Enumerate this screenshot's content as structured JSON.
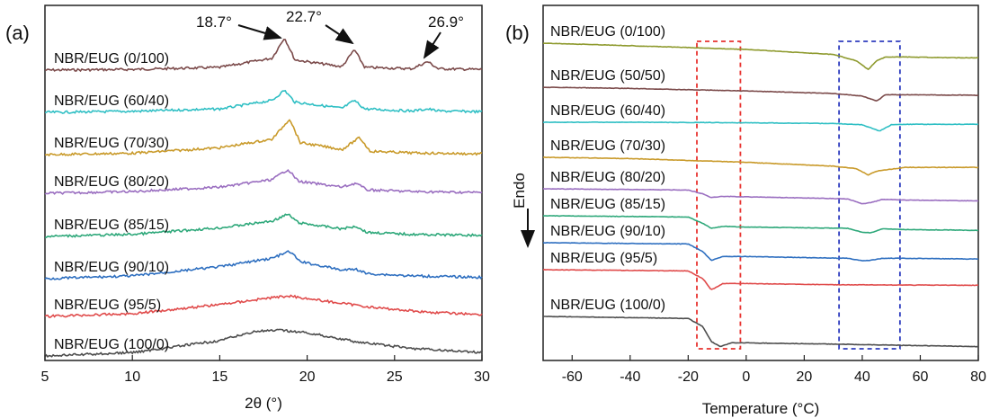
{
  "chart_data": [
    {
      "panel_label": "(a)",
      "type": "line",
      "xlabel": "2θ (°)",
      "ylabel": "",
      "xlim": [
        5,
        30
      ],
      "xticks": [
        "5",
        "10",
        "15",
        "20",
        "25",
        "30"
      ],
      "grid": false,
      "peak_annotations": [
        {
          "text": "18.7°",
          "x": 18.7
        },
        {
          "text": "22.7°",
          "x": 22.7
        },
        {
          "text": "26.9°",
          "x": 26.9
        }
      ],
      "series": [
        {
          "name": "NBR/EUG (0/100)",
          "color": "#7b4a4a",
          "x": [
            5,
            10,
            15,
            18,
            18.7,
            19.3,
            22,
            22.7,
            23.3,
            26,
            26.9,
            27.5,
            30
          ],
          "y": [
            0.0,
            0.02,
            0.08,
            0.35,
            0.95,
            0.3,
            0.1,
            0.6,
            0.08,
            0.04,
            0.25,
            0.04,
            0.02
          ]
        },
        {
          "name": "NBR/EUG (60/40)",
          "color": "#2fbfc4",
          "x": [
            5,
            10,
            15,
            18,
            18.7,
            19.3,
            22,
            22.7,
            23.3,
            26,
            26.9,
            27.5,
            30
          ],
          "y": [
            0.0,
            0.03,
            0.1,
            0.35,
            0.65,
            0.3,
            0.12,
            0.35,
            0.1,
            0.04,
            0.1,
            0.04,
            0.02
          ]
        },
        {
          "name": "NBR/EUG (70/30)",
          "color": "#c99a2a",
          "x": [
            5,
            10,
            15,
            18,
            19.0,
            19.6,
            22,
            23.0,
            23.6,
            26,
            30
          ],
          "y": [
            0.0,
            0.04,
            0.2,
            0.45,
            1.05,
            0.35,
            0.15,
            0.5,
            0.1,
            0.05,
            0.02
          ]
        },
        {
          "name": "NBR/EUG (80/20)",
          "color": "#9a6ec0",
          "x": [
            5,
            10,
            15,
            18,
            18.9,
            19.5,
            22,
            22.8,
            23.4,
            26,
            30
          ],
          "y": [
            0.0,
            0.05,
            0.18,
            0.4,
            0.7,
            0.35,
            0.18,
            0.3,
            0.1,
            0.05,
            0.02
          ]
        },
        {
          "name": "NBR/EUG (85/15)",
          "color": "#2ea87a",
          "x": [
            5,
            10,
            15,
            18,
            18.9,
            19.5,
            22,
            22.8,
            23.4,
            26,
            30
          ],
          "y": [
            0.0,
            0.06,
            0.25,
            0.45,
            0.65,
            0.4,
            0.22,
            0.3,
            0.12,
            0.06,
            0.03
          ]
        },
        {
          "name": "NBR/EUG (90/10)",
          "color": "#2e6fc0",
          "x": [
            5,
            10,
            15,
            18,
            19.0,
            19.6,
            22,
            22.8,
            23.4,
            26,
            30
          ],
          "y": [
            0.0,
            0.08,
            0.35,
            0.6,
            0.8,
            0.5,
            0.25,
            0.28,
            0.15,
            0.08,
            0.04
          ]
        },
        {
          "name": "NBR/EUG (95/5)",
          "color": "#e04b4b",
          "x": [
            5,
            10,
            15,
            18,
            19.0,
            21,
            24,
            27,
            30
          ],
          "y": [
            0.0,
            0.08,
            0.35,
            0.55,
            0.6,
            0.45,
            0.25,
            0.12,
            0.06
          ]
        },
        {
          "name": "NBR/EUG (100/0)",
          "color": "#4d4d4d",
          "x": [
            5,
            10,
            15,
            17,
            18.5,
            20,
            23,
            26,
            30
          ],
          "y": [
            0.0,
            0.1,
            0.45,
            0.72,
            0.75,
            0.68,
            0.4,
            0.22,
            0.1
          ]
        }
      ]
    },
    {
      "panel_label": "(b)",
      "type": "line",
      "xlabel": "Temperature (°C)",
      "ylabel": "Endo",
      "xlim": [
        -70,
        80
      ],
      "xticks": [
        "-60",
        "-40",
        "-20",
        "0",
        "20",
        "40",
        "60",
        "80"
      ],
      "grid": false,
      "highlight_regions": [
        {
          "color": "#e8322f",
          "x_range": [
            -17,
            -2
          ],
          "style": "dashed"
        },
        {
          "color": "#2f3dbf",
          "x_range": [
            32,
            53
          ],
          "style": "dashed"
        }
      ],
      "series": [
        {
          "name": "NBR/EUG (0/100)",
          "color": "#8e9a2e",
          "x": [
            -70,
            -40,
            0,
            30,
            38,
            42,
            45,
            48,
            55,
            70,
            80
          ],
          "y": [
            0.0,
            -0.1,
            -0.25,
            -0.45,
            -0.7,
            -1.05,
            -0.7,
            -0.55,
            -0.55,
            -0.58,
            -0.58
          ]
        },
        {
          "name": "NBR/EUG (50/50)",
          "color": "#7b4a4a",
          "x": [
            -70,
            -40,
            0,
            30,
            40,
            45,
            48,
            55,
            80
          ],
          "y": [
            0.0,
            -0.05,
            -0.15,
            -0.25,
            -0.35,
            -0.55,
            -0.3,
            -0.3,
            -0.32
          ]
        },
        {
          "name": "NBR/EUG (60/40)",
          "color": "#2fbfc4",
          "x": [
            -70,
            -40,
            0,
            30,
            40,
            46,
            50,
            55,
            80
          ],
          "y": [
            0.0,
            0.0,
            -0.02,
            -0.05,
            -0.1,
            -0.35,
            -0.1,
            -0.08,
            -0.08
          ]
        },
        {
          "name": "NBR/EUG (70/30)",
          "color": "#c99a2a",
          "x": [
            -70,
            -40,
            0,
            30,
            38,
            42,
            45,
            48,
            55,
            80
          ],
          "y": [
            0.0,
            -0.05,
            -0.2,
            -0.35,
            -0.45,
            -0.7,
            -0.55,
            -0.5,
            -0.4,
            -0.4
          ]
        },
        {
          "name": "NBR/EUG (80/20)",
          "color": "#9a6ec0",
          "x": [
            -70,
            -20,
            -15,
            -12,
            -8,
            0,
            35,
            40,
            43,
            47,
            55,
            80
          ],
          "y": [
            0.0,
            -0.05,
            -0.2,
            -0.35,
            -0.3,
            -0.32,
            -0.4,
            -0.6,
            -0.55,
            -0.42,
            -0.45,
            -0.48
          ]
        },
        {
          "name": "NBR/EUG (85/15)",
          "color": "#2ea87a",
          "x": [
            -70,
            -20,
            -15,
            -12,
            -8,
            0,
            35,
            40,
            43,
            47,
            55,
            80
          ],
          "y": [
            0.0,
            -0.05,
            -0.3,
            -0.5,
            -0.42,
            -0.45,
            -0.5,
            -0.65,
            -0.68,
            -0.52,
            -0.55,
            -0.58
          ]
        },
        {
          "name": "NBR/EUG (90/10)",
          "color": "#2e6fc0",
          "x": [
            -70,
            -20,
            -15,
            -12,
            -8,
            0,
            35,
            40,
            43,
            47,
            55,
            80
          ],
          "y": [
            0.0,
            -0.05,
            -0.35,
            -0.7,
            -0.55,
            -0.55,
            -0.62,
            -0.72,
            -0.7,
            -0.62,
            -0.62,
            -0.65
          ]
        },
        {
          "name": "NBR/EUG (95/5)",
          "color": "#e04b4b",
          "x": [
            -70,
            -20,
            -15,
            -12,
            -8,
            0,
            30,
            80
          ],
          "y": [
            0.0,
            -0.05,
            -0.35,
            -0.8,
            -0.55,
            -0.55,
            -0.6,
            -0.62
          ]
        },
        {
          "name": "NBR/EUG (100/0)",
          "color": "#4d4d4d",
          "x": [
            -70,
            -20,
            -15,
            -12,
            -9,
            -5,
            0,
            30,
            80
          ],
          "y": [
            0.0,
            -0.08,
            -0.4,
            -1.0,
            -1.2,
            -1.05,
            -1.05,
            -1.1,
            -1.2
          ]
        }
      ]
    }
  ]
}
